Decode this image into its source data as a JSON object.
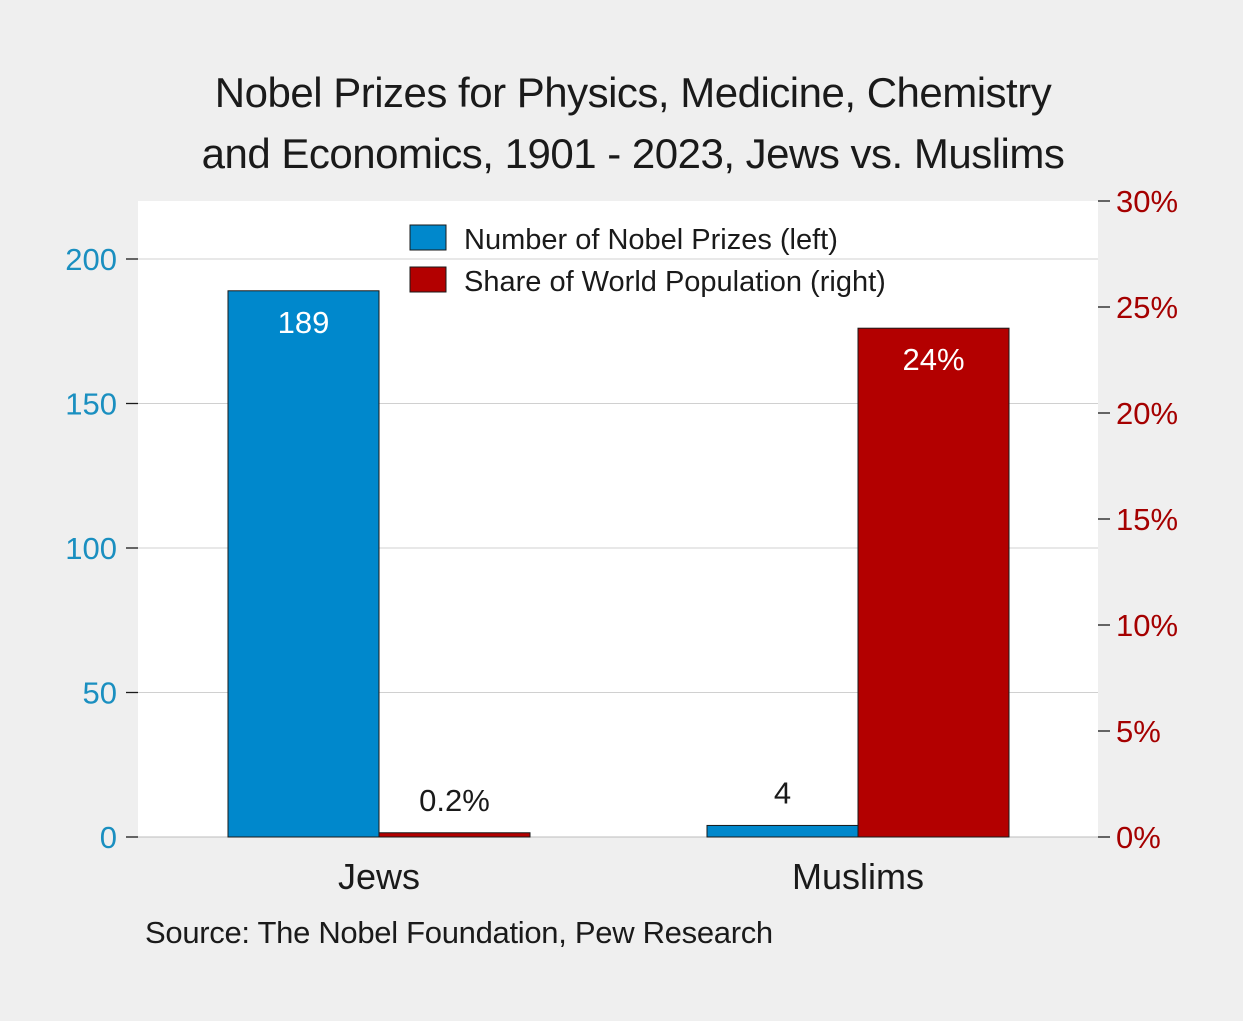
{
  "chart_data": {
    "type": "bar",
    "title_lines": [
      "Nobel Prizes for Physics, Medicine, Chemistry",
      "and Economics, 1901 - 2023, Jews vs. Muslims"
    ],
    "categories": [
      "Jews",
      "Muslims"
    ],
    "series": [
      {
        "name": "Number of Nobel Prizes (left)",
        "axis": "left",
        "color": "#0088cc",
        "values": [
          189,
          4
        ],
        "labels": [
          "189",
          "4"
        ]
      },
      {
        "name": "Share of World Population (right)",
        "axis": "right",
        "color": "#b30000",
        "values": [
          0.2,
          24
        ],
        "labels": [
          "0.2%",
          "24%"
        ]
      }
    ],
    "left_axis": {
      "ylim": [
        0,
        220
      ],
      "ticks": [
        0,
        50,
        100,
        150,
        200
      ],
      "tick_labels": [
        "0",
        "50",
        "100",
        "150",
        "200"
      ],
      "color": "#1a8fc0"
    },
    "right_axis": {
      "ylim": [
        0,
        30
      ],
      "ticks": [
        0,
        5,
        10,
        15,
        20,
        25,
        30
      ],
      "tick_labels": [
        "0%",
        "5%",
        "10%",
        "15%",
        "20%",
        "25%",
        "30%"
      ],
      "color": "#a50000"
    },
    "grid": true,
    "legend_position": "top-center",
    "xlabel": "",
    "ylabel": ""
  },
  "source": "Source: The Nobel Foundation, Pew Research"
}
